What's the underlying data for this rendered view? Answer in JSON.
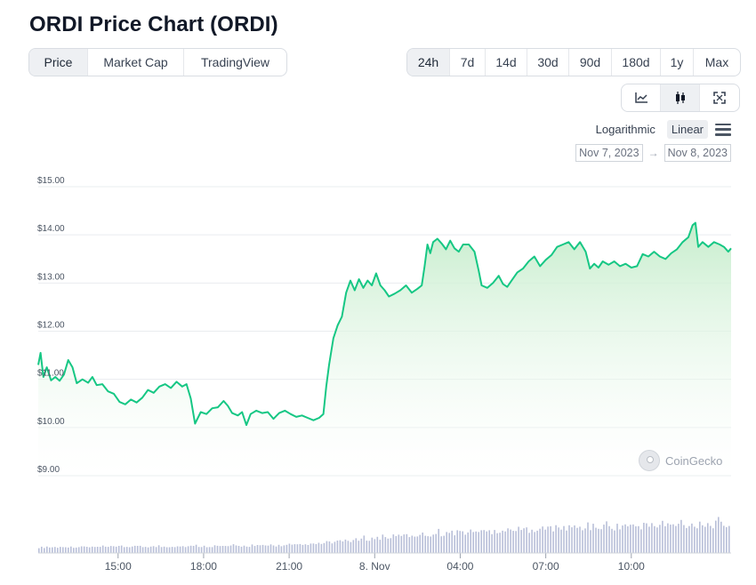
{
  "header": {
    "title": "ORDI Price Chart (ORDI)"
  },
  "view_tabs": [
    {
      "label": "Price",
      "active": true
    },
    {
      "label": "Market Cap",
      "active": false
    },
    {
      "label": "TradingView",
      "active": false
    }
  ],
  "range_tabs": [
    {
      "label": "24h",
      "active": true
    },
    {
      "label": "7d",
      "active": false
    },
    {
      "label": "14d",
      "active": false
    },
    {
      "label": "30d",
      "active": false
    },
    {
      "label": "90d",
      "active": false
    },
    {
      "label": "180d",
      "active": false
    },
    {
      "label": "1y",
      "active": false
    },
    {
      "label": "Max",
      "active": false
    }
  ],
  "chart_type_icons": [
    "line-chart-icon",
    "candlestick-icon",
    "fullscreen-icon"
  ],
  "scale": {
    "log_label": "Logarithmic",
    "linear_label": "Linear",
    "active": "Linear"
  },
  "date_range": {
    "from": "Nov 7, 2023",
    "arrow": "→",
    "to": "Nov 8, 2023"
  },
  "watermark": "CoinGecko",
  "colors": {
    "line": "#16c784",
    "fill_top": "#c9efcf",
    "volume": "#b8bfd8",
    "grid": "#e9ecef"
  },
  "chart_data": {
    "type": "area",
    "title": "",
    "ylim": [
      9,
      15
    ],
    "yticks": [
      9,
      10,
      11,
      12,
      13,
      14,
      15
    ],
    "ytick_labels": [
      "$9.00",
      "$10.00",
      "$11.00",
      "$12.00",
      "$13.00",
      "$14.00",
      "$15.00"
    ],
    "x_range": [
      0,
      24.3
    ],
    "xticks": [
      2.8,
      5.8,
      8.8,
      11.8,
      14.8,
      17.8,
      20.8
    ],
    "xtick_labels": [
      "15:00",
      "18:00",
      "21:00",
      "8. Nov",
      "04:00",
      "07:00",
      "10:00"
    ],
    "grid": true,
    "series": [
      {
        "values": [
          [
            0.0,
            11.3
          ],
          [
            0.08,
            11.55
          ],
          [
            0.18,
            11.05
          ],
          [
            0.3,
            11.25
          ],
          [
            0.45,
            10.98
          ],
          [
            0.6,
            11.05
          ],
          [
            0.75,
            10.97
          ],
          [
            0.9,
            11.1
          ],
          [
            1.05,
            11.4
          ],
          [
            1.2,
            11.25
          ],
          [
            1.35,
            10.92
          ],
          [
            1.55,
            11.0
          ],
          [
            1.75,
            10.93
          ],
          [
            1.9,
            11.05
          ],
          [
            2.05,
            10.88
          ],
          [
            2.25,
            10.9
          ],
          [
            2.45,
            10.75
          ],
          [
            2.65,
            10.7
          ],
          [
            2.85,
            10.53
          ],
          [
            3.05,
            10.48
          ],
          [
            3.25,
            10.58
          ],
          [
            3.45,
            10.52
          ],
          [
            3.65,
            10.62
          ],
          [
            3.85,
            10.78
          ],
          [
            4.05,
            10.72
          ],
          [
            4.25,
            10.85
          ],
          [
            4.45,
            10.9
          ],
          [
            4.65,
            10.82
          ],
          [
            4.85,
            10.95
          ],
          [
            5.05,
            10.85
          ],
          [
            5.2,
            10.9
          ],
          [
            5.35,
            10.6
          ],
          [
            5.5,
            10.08
          ],
          [
            5.7,
            10.32
          ],
          [
            5.9,
            10.28
          ],
          [
            6.1,
            10.4
          ],
          [
            6.3,
            10.42
          ],
          [
            6.5,
            10.55
          ],
          [
            6.65,
            10.45
          ],
          [
            6.8,
            10.3
          ],
          [
            7.0,
            10.25
          ],
          [
            7.15,
            10.32
          ],
          [
            7.3,
            10.05
          ],
          [
            7.45,
            10.28
          ],
          [
            7.65,
            10.35
          ],
          [
            7.85,
            10.3
          ],
          [
            8.05,
            10.32
          ],
          [
            8.25,
            10.18
          ],
          [
            8.45,
            10.3
          ],
          [
            8.65,
            10.35
          ],
          [
            8.85,
            10.28
          ],
          [
            9.05,
            10.22
          ],
          [
            9.25,
            10.25
          ],
          [
            9.45,
            10.2
          ],
          [
            9.65,
            10.15
          ],
          [
            9.85,
            10.2
          ],
          [
            10.0,
            10.28
          ],
          [
            10.1,
            10.85
          ],
          [
            10.2,
            11.3
          ],
          [
            10.35,
            11.85
          ],
          [
            10.5,
            12.12
          ],
          [
            10.65,
            12.3
          ],
          [
            10.8,
            12.8
          ],
          [
            10.95,
            13.05
          ],
          [
            11.1,
            12.85
          ],
          [
            11.25,
            13.08
          ],
          [
            11.4,
            12.9
          ],
          [
            11.55,
            13.05
          ],
          [
            11.7,
            12.95
          ],
          [
            11.85,
            13.2
          ],
          [
            12.0,
            12.95
          ],
          [
            12.15,
            12.85
          ],
          [
            12.3,
            12.72
          ],
          [
            12.5,
            12.78
          ],
          [
            12.7,
            12.85
          ],
          [
            12.9,
            12.95
          ],
          [
            13.1,
            12.8
          ],
          [
            13.3,
            12.88
          ],
          [
            13.45,
            12.95
          ],
          [
            13.55,
            13.35
          ],
          [
            13.65,
            13.8
          ],
          [
            13.75,
            13.62
          ],
          [
            13.85,
            13.85
          ],
          [
            14.0,
            13.92
          ],
          [
            14.15,
            13.82
          ],
          [
            14.3,
            13.7
          ],
          [
            14.45,
            13.88
          ],
          [
            14.6,
            13.72
          ],
          [
            14.75,
            13.65
          ],
          [
            14.9,
            13.8
          ],
          [
            15.1,
            13.8
          ],
          [
            15.3,
            13.65
          ],
          [
            15.45,
            13.25
          ],
          [
            15.55,
            12.95
          ],
          [
            15.75,
            12.9
          ],
          [
            15.95,
            13.0
          ],
          [
            16.15,
            13.15
          ],
          [
            16.3,
            12.98
          ],
          [
            16.45,
            12.92
          ],
          [
            16.6,
            13.05
          ],
          [
            16.8,
            13.22
          ],
          [
            17.0,
            13.3
          ],
          [
            17.2,
            13.45
          ],
          [
            17.4,
            13.55
          ],
          [
            17.6,
            13.35
          ],
          [
            17.8,
            13.48
          ],
          [
            18.0,
            13.58
          ],
          [
            18.2,
            13.75
          ],
          [
            18.4,
            13.8
          ],
          [
            18.6,
            13.85
          ],
          [
            18.8,
            13.7
          ],
          [
            19.0,
            13.85
          ],
          [
            19.2,
            13.65
          ],
          [
            19.35,
            13.3
          ],
          [
            19.5,
            13.4
          ],
          [
            19.65,
            13.32
          ],
          [
            19.8,
            13.45
          ],
          [
            20.0,
            13.38
          ],
          [
            20.2,
            13.45
          ],
          [
            20.4,
            13.35
          ],
          [
            20.6,
            13.4
          ],
          [
            20.8,
            13.32
          ],
          [
            21.0,
            13.35
          ],
          [
            21.2,
            13.6
          ],
          [
            21.4,
            13.55
          ],
          [
            21.6,
            13.65
          ],
          [
            21.8,
            13.55
          ],
          [
            22.0,
            13.5
          ],
          [
            22.2,
            13.62
          ],
          [
            22.4,
            13.7
          ],
          [
            22.6,
            13.85
          ],
          [
            22.8,
            13.95
          ],
          [
            22.95,
            14.2
          ],
          [
            23.05,
            14.25
          ],
          [
            23.15,
            13.75
          ],
          [
            23.3,
            13.85
          ],
          [
            23.5,
            13.75
          ],
          [
            23.7,
            13.85
          ],
          [
            23.9,
            13.8
          ],
          [
            24.05,
            13.75
          ],
          [
            24.2,
            13.65
          ],
          [
            24.3,
            13.72
          ]
        ]
      }
    ],
    "volume_levels": [
      0.15,
      0.16,
      0.16,
      0.17,
      0.17,
      0.18,
      0.18,
      0.19,
      0.2,
      0.22,
      0.3,
      0.38,
      0.45,
      0.5,
      0.55,
      0.58,
      0.62,
      0.65,
      0.68,
      0.7,
      0.72,
      0.74,
      0.76,
      0.76
    ]
  }
}
